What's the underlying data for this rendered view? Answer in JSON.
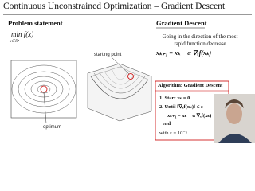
{
  "header": {
    "title": "Continuous Unconstrained Optimization – Gradient Descent"
  },
  "left": {
    "heading": "Problem statement",
    "objective": "min f(x)",
    "domain": "x∈ℝⁿ",
    "starting_point": "starting point",
    "optimum": "optimum"
  },
  "right": {
    "heading": "Gradient Descent",
    "description": "Going in the direction of the most rapid function decrease",
    "update": "xₖ₊₁ = xₖ − α ∇ₓf(xₖ)",
    "algorithm": {
      "title": "Algorithm: Gradient Descent",
      "step1": "1. Start xₖ = 0",
      "step2": "2. Until ‖∇ₓf(xₖ)‖ ≤ ε",
      "step3": "xₖ₊₁ = xₖ − α ∇ₓf(xₖ)",
      "end": "end",
      "epsilon": "with ε = 10⁻⁵"
    }
  }
}
